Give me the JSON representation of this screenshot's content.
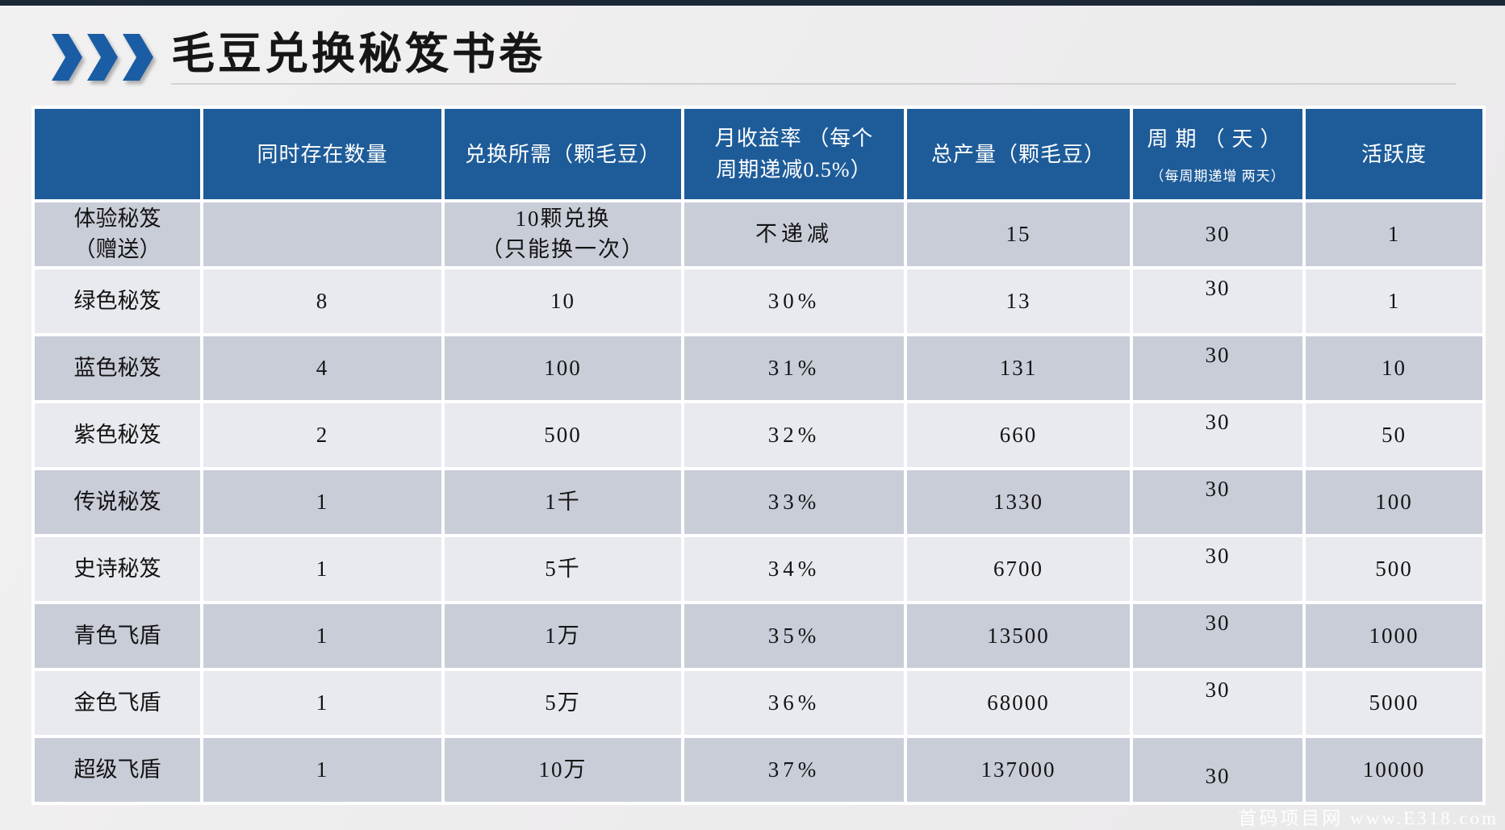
{
  "page": {
    "title": "毛豆兑换秘笈书卷",
    "watermark": "首码项目网 www.E318.com"
  },
  "colors": {
    "header_blue": "#1e5c99",
    "arrow_blue": "#1a5da4",
    "row_dark": "#c9cdd8",
    "row_light": "#e9eaef",
    "top_bar": "#1c2836",
    "background": "#eeedee"
  },
  "table": {
    "columns": [
      {
        "label": ""
      },
      {
        "label": "同时存在数量"
      },
      {
        "label": "兑换所需（颗毛豆）"
      },
      {
        "label": "月收益率 （每个\n周期递减0.5%）"
      },
      {
        "label": "总产量（颗毛豆）"
      },
      {
        "label": "周期（天）",
        "sublabel": "（每周期递增 两天）"
      },
      {
        "label": "活跃度"
      }
    ],
    "rows": [
      {
        "name": "体验秘笈\n（赠送）",
        "count": "",
        "cost": "10颗兑换\n（只能换一次）",
        "rate": "不递减",
        "output": "15",
        "cycle": "30",
        "activity": "1"
      },
      {
        "name": "绿色秘笈",
        "count": "8",
        "cost": "10",
        "rate": "30%",
        "output": "13",
        "cycle": "30",
        "activity": "1"
      },
      {
        "name": "蓝色秘笈",
        "count": "4",
        "cost": "100",
        "rate": "31%",
        "output": "131",
        "cycle": "30",
        "activity": "10"
      },
      {
        "name": "紫色秘笈",
        "count": "2",
        "cost": "500",
        "rate": "32%",
        "output": "660",
        "cycle": "30",
        "activity": "50"
      },
      {
        "name": "传说秘笈",
        "count": "1",
        "cost": "1千",
        "rate": "33%",
        "output": "1330",
        "cycle": "30",
        "activity": "100"
      },
      {
        "name": "史诗秘笈",
        "count": "1",
        "cost": "5千",
        "rate": "34%",
        "output": "6700",
        "cycle": "30",
        "activity": "500"
      },
      {
        "name": "青色飞盾",
        "count": "1",
        "cost": "1万",
        "rate": "35%",
        "output": "13500",
        "cycle": "30",
        "activity": "1000"
      },
      {
        "name": "金色飞盾",
        "count": "1",
        "cost": "5万",
        "rate": "36%",
        "output": "68000",
        "cycle": "30",
        "activity": "5000"
      },
      {
        "name": "超级飞盾",
        "count": "1",
        "cost": "10万",
        "rate": "37%",
        "output": "137000",
        "cycle": "30",
        "activity": "10000"
      }
    ]
  }
}
